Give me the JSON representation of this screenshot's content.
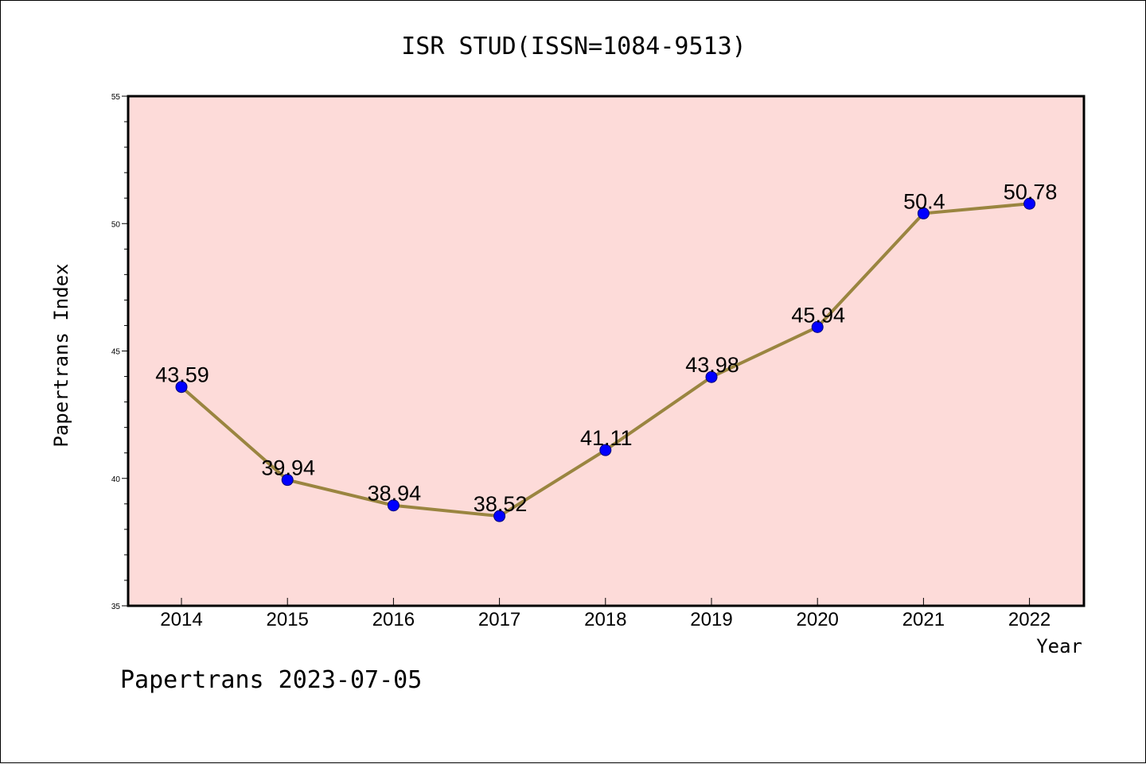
{
  "chart_data": {
    "type": "line",
    "title": "ISR STUD(ISSN=1084-9513)",
    "xlabel": "Year",
    "ylabel": "Papertrans Index",
    "categories": [
      "2014",
      "2015",
      "2016",
      "2017",
      "2018",
      "2019",
      "2020",
      "2021",
      "2022"
    ],
    "series": [
      {
        "values": [
          43.59,
          39.94,
          38.94,
          38.52,
          41.11,
          43.98,
          45.94,
          50.4,
          50.78
        ],
        "labels": [
          "43.59",
          "39.94",
          "38.94",
          "38.52",
          "41.11",
          "43.98",
          "45.94",
          "50.4",
          "50.78"
        ]
      }
    ],
    "ylim": [
      35,
      55
    ],
    "yticks": [
      "35",
      "40",
      "45",
      "50",
      "55"
    ],
    "grid": false,
    "legend": "none"
  },
  "footer_text": "Papertrans 2023-07-05",
  "colors": {
    "plot_background": "#fddbd9",
    "line": "#9a8540",
    "marker": "#0000ff",
    "axis": "#000000"
  }
}
